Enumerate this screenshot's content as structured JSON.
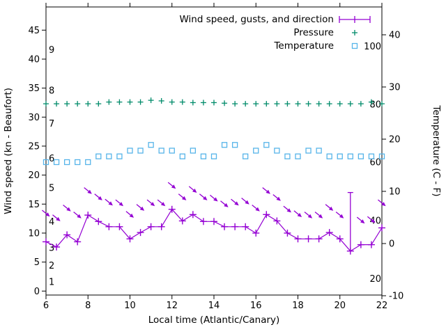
{
  "figure": {
    "background_color": "#ffffff",
    "border_color": "#000000",
    "text_color": "#000000"
  },
  "legend": {
    "position": "top-right-inside",
    "entries": [
      {
        "label": "Wind speed, gusts, and direction",
        "series": "wind"
      },
      {
        "label": "Pressure",
        "series": "pressure"
      },
      {
        "label": "Temperature",
        "series": "temperature"
      }
    ]
  },
  "chart_data": {
    "type": "line",
    "title": "",
    "xlabel": "Local time (Atlantic/Canary)",
    "ylabel_left": "Wind speed (kn - Beaufort)",
    "ylabel_right": "Temperature (C - F)",
    "x_range": [
      6,
      22
    ],
    "y_left_range_kn": [
      -0.7,
      49.0
    ],
    "y_right_range_c": [
      -10.2,
      45.3
    ],
    "x_ticks": [
      6,
      8,
      10,
      12,
      14,
      16,
      18,
      20,
      22
    ],
    "y_left_ticks_kn": [
      0,
      5,
      10,
      15,
      20,
      25,
      30,
      35,
      40,
      45
    ],
    "y_right_ticks_c": [
      -10,
      0,
      10,
      20,
      30,
      40
    ],
    "beaufort_inner_labels": [
      {
        "label": "1",
        "kn": 1.6
      },
      {
        "label": "2",
        "kn": 4.4
      },
      {
        "label": "3",
        "kn": 7.5
      },
      {
        "label": "4",
        "kn": 12.0
      },
      {
        "label": "5",
        "kn": 17.8
      },
      {
        "label": "6",
        "kn": 22.9
      },
      {
        "label": "7",
        "kn": 28.9
      },
      {
        "label": "8",
        "kn": 34.6
      },
      {
        "label": "9",
        "kn": 41.6
      }
    ],
    "fahrenheit_inner_labels": [
      {
        "label": "20",
        "c": -6.7
      },
      {
        "label": "40",
        "c": 4.4
      },
      {
        "label": "60",
        "c": 15.6
      },
      {
        "label": "80",
        "c": 26.7
      },
      {
        "label": "100",
        "c": 37.8
      }
    ],
    "x": [
      6,
      6.5,
      7,
      7.5,
      8,
      8.5,
      9,
      9.5,
      10,
      10.5,
      11,
      11.5,
      12,
      12.5,
      13,
      13.5,
      14,
      14.5,
      15,
      15.5,
      16,
      16.5,
      17,
      17.5,
      18,
      18.5,
      19,
      19.5,
      20,
      20.5,
      21,
      21.5,
      22
    ],
    "series": [
      {
        "name": "Wind speed, gusts, and direction",
        "type": "line-with-markers-and-direction-arrows",
        "color": "#9400d3",
        "marker": "plus",
        "units": "kn",
        "speed_kn": [
          8.5,
          7.6,
          9.7,
          8.5,
          13.1,
          12.0,
          11.1,
          11.1,
          9.0,
          10.1,
          11.1,
          11.1,
          14.1,
          12.1,
          13.2,
          12.0,
          12.0,
          11.1,
          11.1,
          11.1,
          10.0,
          13.2,
          12.1,
          10.0,
          9.0,
          9.0,
          9.0,
          10.1,
          9.0,
          6.9,
          8.0,
          8.0,
          10.9
        ],
        "gust_kn": [
          13.4,
          12.6,
          14.3,
          13.1,
          17.3,
          16.2,
          15.3,
          15.2,
          13.2,
          14.4,
          15.2,
          15.2,
          18.2,
          16.2,
          17.5,
          16.2,
          16.0,
          15.0,
          15.3,
          15.5,
          14.3,
          17.3,
          16.1,
          14.1,
          13.3,
          13.1,
          13.1,
          14.4,
          13.1,
          17.0,
          12.2,
          12.3,
          15.2
        ],
        "arrow_direction": "from-northwest",
        "gust_range_bar": {
          "x": 20.5,
          "low_kn": 6.9,
          "high_kn": 17.0
        }
      },
      {
        "name": "Pressure",
        "type": "scatter",
        "color": "#008b6a",
        "marker": "plus",
        "axis_note": "no pressure axis shown; values are plotted level in left-axis units",
        "values_left_axis": [
          32.3,
          32.3,
          32.3,
          32.3,
          32.3,
          32.3,
          32.6,
          32.6,
          32.6,
          32.6,
          32.9,
          32.8,
          32.6,
          32.6,
          32.5,
          32.5,
          32.5,
          32.4,
          32.3,
          32.3,
          32.3,
          32.3,
          32.3,
          32.3,
          32.3,
          32.3,
          32.3,
          32.3,
          32.3,
          32.3,
          32.3,
          32.6,
          32.3
        ]
      },
      {
        "name": "Temperature",
        "type": "scatter",
        "color": "#56b4e9",
        "marker": "open-square",
        "values_c": [
          15.6,
          15.6,
          15.6,
          15.6,
          15.6,
          16.7,
          16.7,
          16.7,
          17.8,
          17.8,
          18.9,
          17.8,
          17.8,
          16.7,
          17.8,
          16.7,
          16.7,
          18.9,
          18.9,
          16.7,
          17.8,
          18.9,
          17.8,
          16.7,
          16.7,
          17.8,
          17.8,
          16.7,
          16.7,
          16.7,
          16.7,
          16.7,
          16.7
        ],
        "values_f": [
          60,
          60,
          60,
          60,
          60,
          62,
          62,
          62,
          64,
          64,
          66,
          64,
          64,
          62,
          64,
          62,
          62,
          66,
          66,
          62,
          64,
          66,
          64,
          62,
          62,
          64,
          64,
          62,
          62,
          62,
          62,
          62,
          62
        ]
      }
    ],
    "grid": false,
    "tick_style": "outward"
  }
}
